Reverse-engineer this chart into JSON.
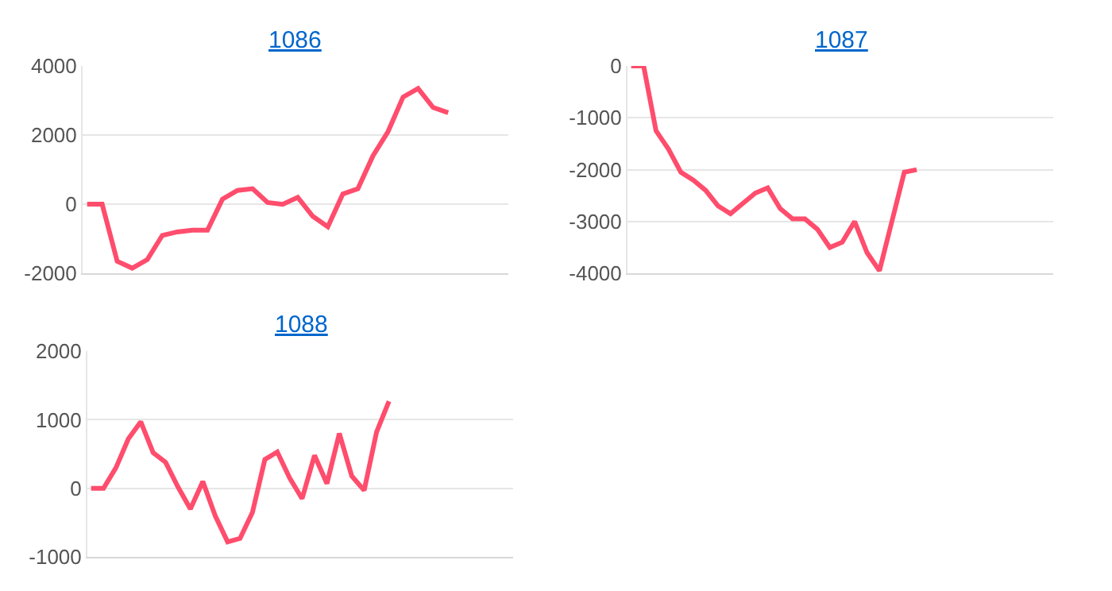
{
  "chart_data": [
    {
      "type": "line",
      "title": "1086",
      "categories": [
        null,
        null,
        null,
        null,
        null,
        null,
        null,
        null,
        null,
        null,
        null,
        null,
        null,
        null,
        null,
        null,
        null,
        null,
        null,
        null,
        null,
        null,
        null,
        null,
        null,
        null,
        null,
        null,
        null
      ],
      "series": [
        {
          "color": "#ff4d6d",
          "values": [
            0,
            0,
            -1650,
            -1850,
            -1600,
            -900,
            -800,
            -750,
            -750,
            150,
            400,
            450,
            50,
            0,
            200,
            -350,
            -650,
            300,
            450,
            1400,
            2100,
            3100,
            3350,
            2800,
            2650,
            null,
            null,
            null,
            null
          ]
        }
      ],
      "ylim": [
        -2000,
        4000
      ],
      "yticks": [
        -2000,
        0,
        2000,
        4000
      ],
      "grid": "y",
      "marker": "none",
      "line_style": "solid"
    },
    {
      "type": "line",
      "title": "1087",
      "categories": [
        null,
        null,
        null,
        null,
        null,
        null,
        null,
        null,
        null,
        null,
        null,
        null,
        null,
        null,
        null,
        null,
        null,
        null,
        null,
        null,
        null,
        null,
        null,
        null,
        null,
        null,
        null,
        null,
        null,
        null,
        null,
        null,
        null,
        null,
        null
      ],
      "series": [
        {
          "color": "#ff4d6d",
          "values": [
            0,
            0,
            -1250,
            -1600,
            -2050,
            -2200,
            -2400,
            -2700,
            -2850,
            -2650,
            -2450,
            -2350,
            -2750,
            -2950,
            -2950,
            -3150,
            -3500,
            -3400,
            -3000,
            -3600,
            -3950,
            -3000,
            -2050,
            -2000,
            null,
            null,
            null,
            null,
            null,
            null,
            null,
            null,
            null,
            null,
            null
          ]
        }
      ],
      "ylim": [
        -4000,
        0
      ],
      "yticks": [
        -4000,
        -3000,
        -2000,
        -1000,
        0
      ],
      "grid": "y",
      "marker": "none",
      "line_style": "solid"
    },
    {
      "type": "line",
      "title": "1088",
      "categories": [
        null,
        null,
        null,
        null,
        null,
        null,
        null,
        null,
        null,
        null,
        null,
        null,
        null,
        null,
        null,
        null,
        null,
        null,
        null,
        null,
        null,
        null,
        null,
        null,
        null,
        null,
        null,
        null,
        null,
        null,
        null,
        null,
        null,
        null,
        null
      ],
      "series": [
        {
          "color": "#ff4d6d",
          "values": [
            0,
            0,
            300,
            720,
            970,
            520,
            380,
            20,
            -300,
            100,
            -400,
            -780,
            -730,
            -350,
            420,
            530,
            150,
            -150,
            480,
            70,
            800,
            180,
            -30,
            820,
            1270,
            null,
            null,
            null,
            null,
            null,
            null,
            null,
            null,
            null,
            null
          ]
        }
      ],
      "ylim": [
        -1000,
        2000
      ],
      "yticks": [
        -1000,
        0,
        1000,
        2000
      ],
      "grid": "y",
      "marker": "none",
      "line_style": "solid"
    }
  ]
}
